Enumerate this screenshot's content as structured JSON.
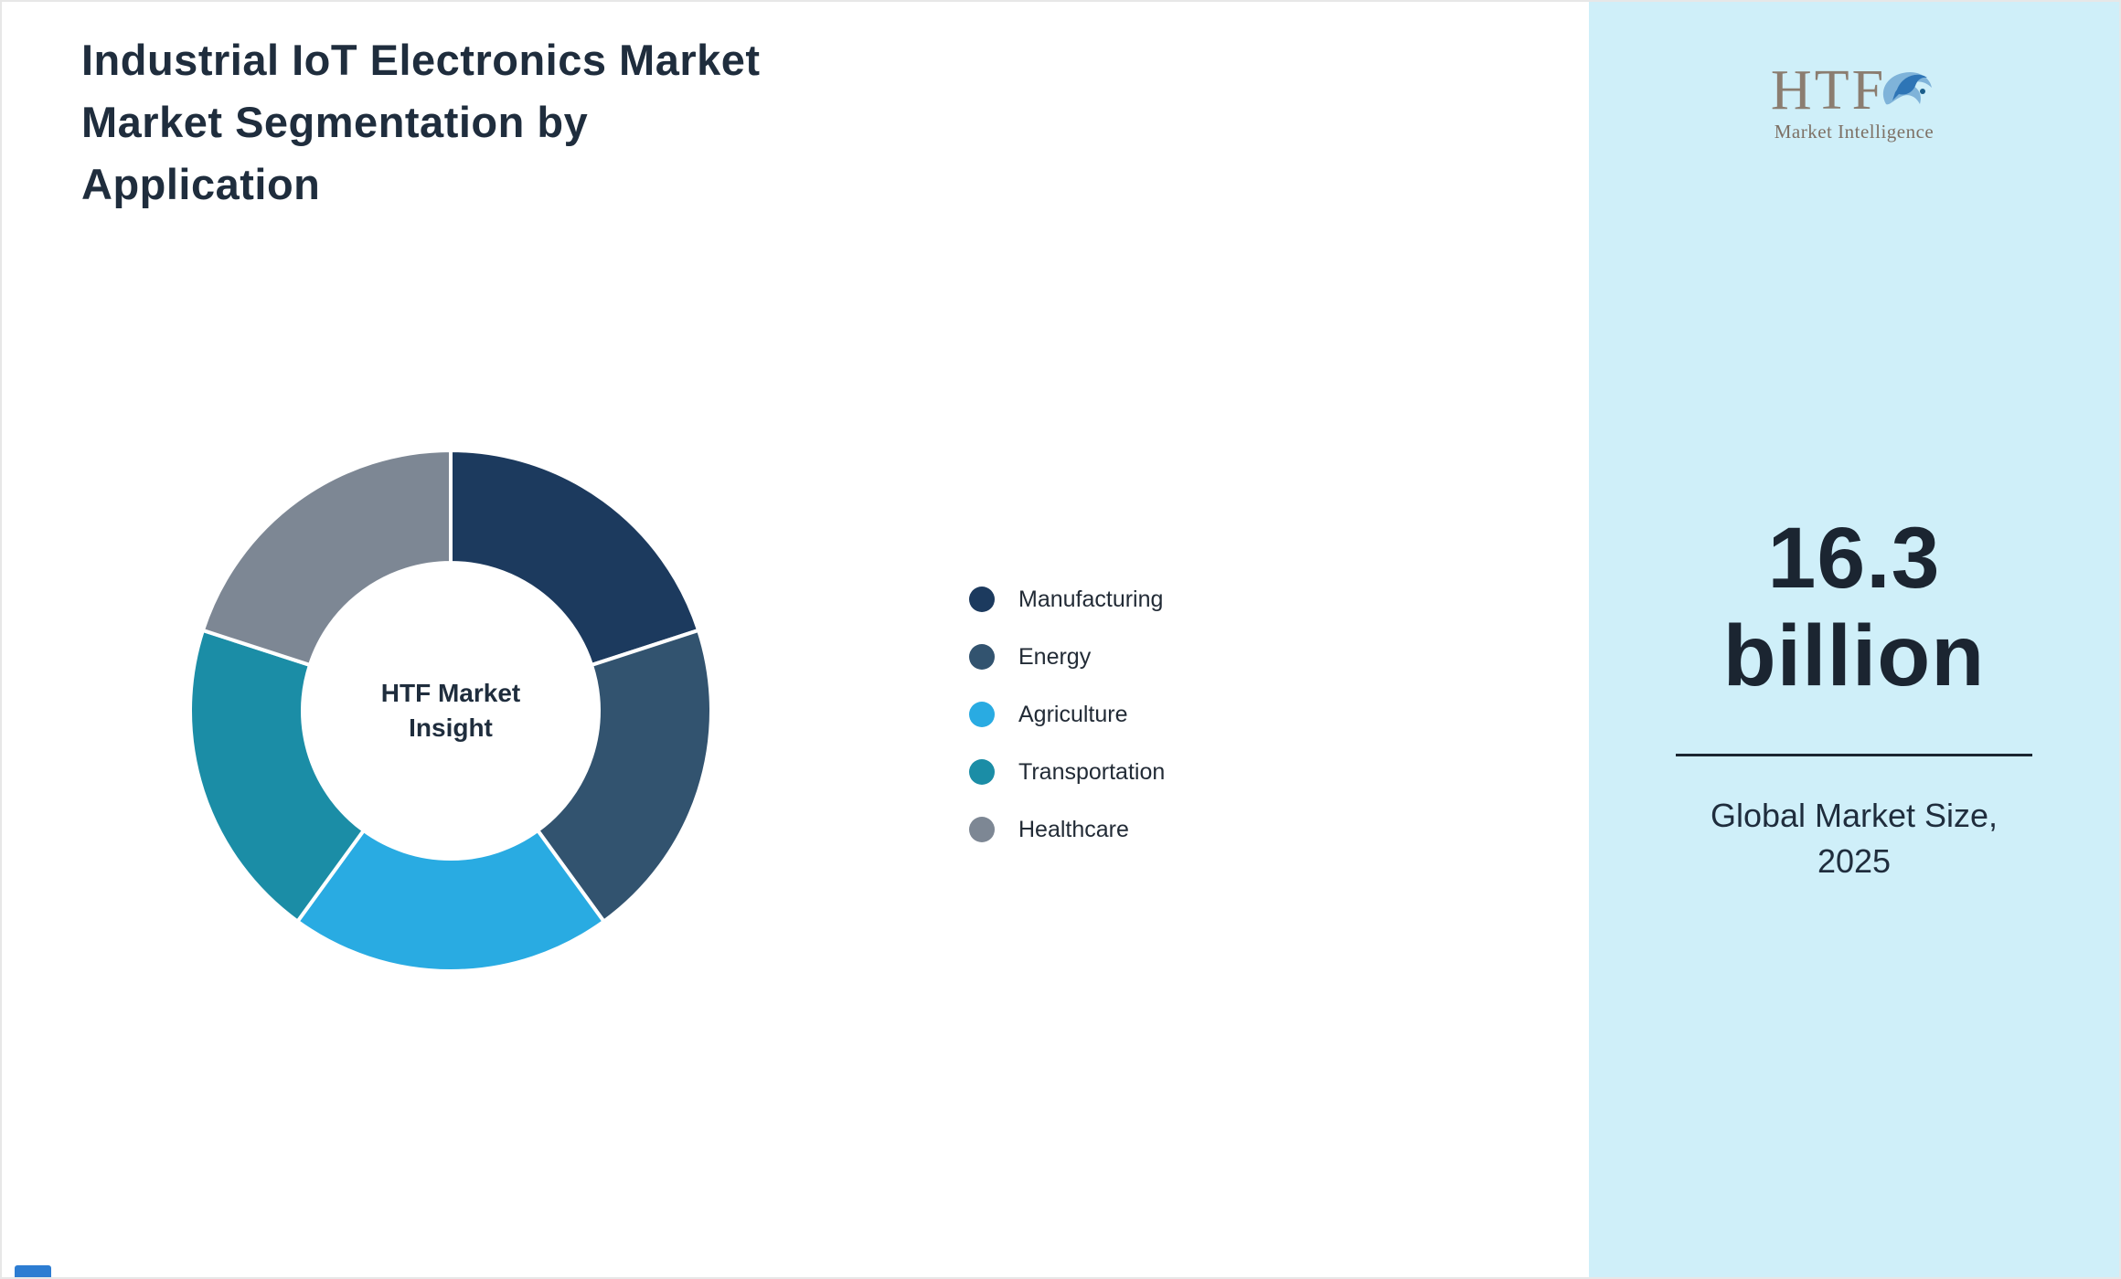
{
  "header": {
    "title": "Industrial IoT Electronics Market\nMarket Segmentation by\nApplication",
    "title_color": "#1f2d3d"
  },
  "chart_data": {
    "type": "pie",
    "subtype": "donut",
    "title": "Industrial IoT Electronics Market - Market Segmentation by Application",
    "categories": [
      "Manufacturing",
      "Energy",
      "Agriculture",
      "Transportation",
      "Healthcare"
    ],
    "values": [
      20,
      20,
      20,
      20,
      20
    ],
    "colors": [
      "#1c3a5e",
      "#32536f",
      "#29abe2",
      "#1b8da6",
      "#7d8794"
    ],
    "center_label": "HTF Market\nInsight",
    "legend_position": "right",
    "donut_hole_ratio": 0.57,
    "segment_gap_color": "#ffffff"
  },
  "sidebar": {
    "background_color": "#cfeff9",
    "logo": {
      "text": "HTF",
      "subtext": "Market Intelligence",
      "icon": "dolphin-icon",
      "text_color": "#8b7d70"
    },
    "market_size_value": "16.3\nbillion",
    "market_size_caption": "Global Market Size,\n2025",
    "value_color": "#1b2531"
  },
  "decor": {
    "corner_accent_color": "#2d7dd2"
  }
}
